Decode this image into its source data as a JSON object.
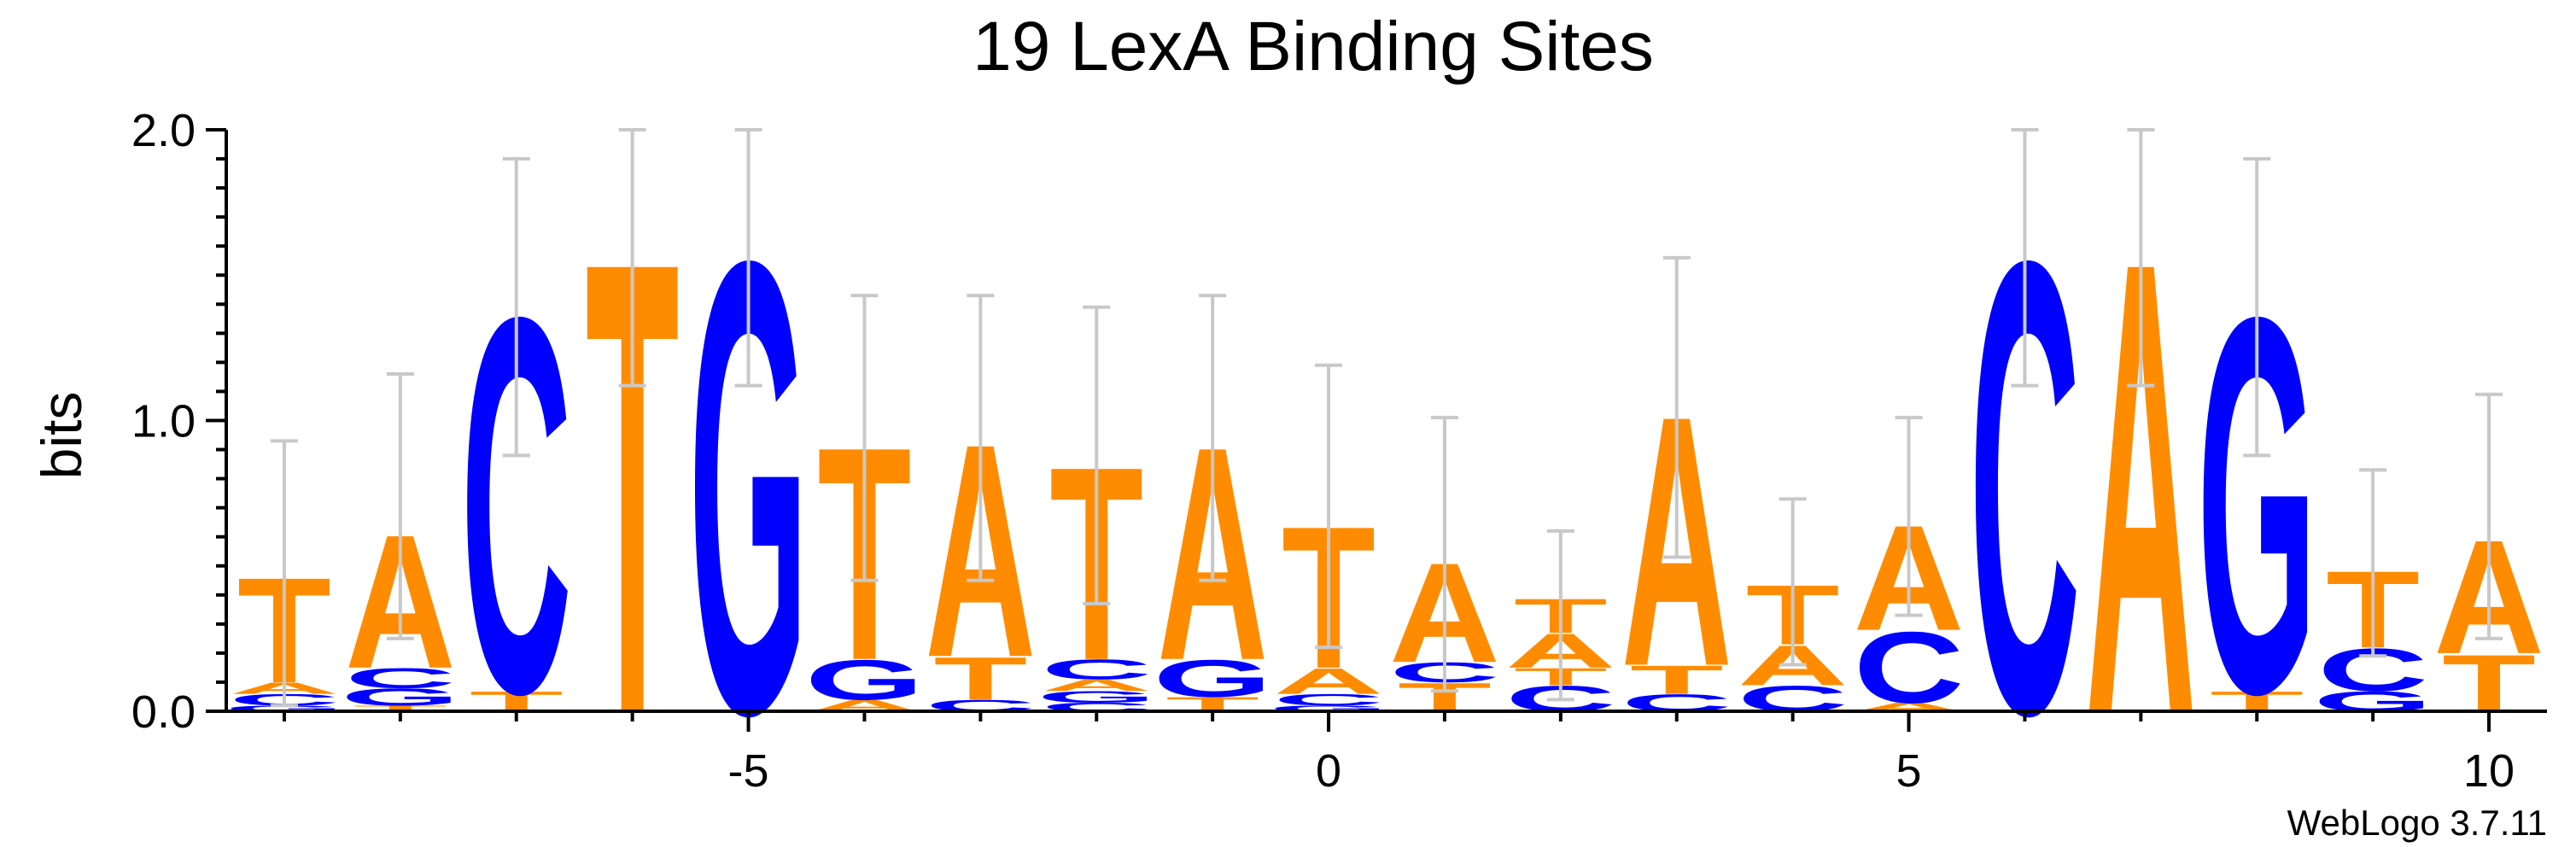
{
  "chart_data": {
    "type": "sequence-logo",
    "title": "19 LexA Binding Sites",
    "ylabel": "bits",
    "xlabel": "",
    "ylim": [
      0,
      2.0
    ],
    "xlim": [
      -9.5,
      10.5
    ],
    "y_ticks": [
      "0.0",
      "1.0",
      "2.0"
    ],
    "x_ticks": [
      "-5",
      "0",
      "5",
      "10"
    ],
    "footer": "WebLogo 3.7.11",
    "colors": {
      "A": "#ff8c00",
      "T": "#ff8c00",
      "C": "#0000ff",
      "G": "#0000ff",
      "error_bar": "#c8c8c8"
    },
    "positions": [
      {
        "pos": -9,
        "error": [
          0.02,
          0.93
        ],
        "stack": [
          {
            "b": "G",
            "h": 0.02
          },
          {
            "b": "C",
            "h": 0.04
          },
          {
            "b": "A",
            "h": 0.04
          },
          {
            "b": "T",
            "h": 0.37
          }
        ]
      },
      {
        "pos": -8,
        "error": [
          0.25,
          1.16
        ],
        "stack": [
          {
            "b": "T",
            "h": 0.02
          },
          {
            "b": "G",
            "h": 0.06
          },
          {
            "b": "C",
            "h": 0.07
          },
          {
            "b": "A",
            "h": 0.47
          }
        ]
      },
      {
        "pos": -7,
        "error": [
          0.88,
          1.9
        ],
        "stack": [
          {
            "b": "T",
            "h": 0.07
          },
          {
            "b": "C",
            "h": 1.32
          }
        ]
      },
      {
        "pos": -6,
        "error": [
          1.12,
          2.0
        ],
        "stack": [
          {
            "b": "T",
            "h": 1.59
          }
        ]
      },
      {
        "pos": -5,
        "error": [
          1.12,
          2.0
        ],
        "stack": [
          {
            "b": "G",
            "h": 1.59
          }
        ]
      },
      {
        "pos": -4,
        "error": [
          0.45,
          1.43
        ],
        "stack": [
          {
            "b": "A",
            "h": 0.04
          },
          {
            "b": "G",
            "h": 0.14
          },
          {
            "b": "T",
            "h": 0.75
          }
        ]
      },
      {
        "pos": -3,
        "error": [
          0.45,
          1.43
        ],
        "stack": [
          {
            "b": "C",
            "h": 0.04
          },
          {
            "b": "T",
            "h": 0.15
          },
          {
            "b": "A",
            "h": 0.75
          }
        ]
      },
      {
        "pos": -2,
        "error": [
          0.37,
          1.39
        ],
        "stack": [
          {
            "b": "C",
            "h": 0.03
          },
          {
            "b": "G",
            "h": 0.04
          },
          {
            "b": "A",
            "h": 0.04
          },
          {
            "b": "C",
            "h": 0.07
          },
          {
            "b": "T",
            "h": 0.68
          }
        ]
      },
      {
        "pos": -1,
        "error": [
          0.45,
          1.43
        ],
        "stack": [
          {
            "b": "T",
            "h": 0.05
          },
          {
            "b": "G",
            "h": 0.13
          },
          {
            "b": "A",
            "h": 0.75
          }
        ]
      },
      {
        "pos": 0,
        "error": [
          0.22,
          1.19
        ],
        "stack": [
          {
            "b": "G",
            "h": 0.02
          },
          {
            "b": "C",
            "h": 0.04
          },
          {
            "b": "A",
            "h": 0.09
          },
          {
            "b": "T",
            "h": 0.5
          }
        ]
      },
      {
        "pos": 1,
        "error": [
          0.07,
          1.01
        ],
        "stack": [
          {
            "b": "T",
            "h": 0.1
          },
          {
            "b": "C",
            "h": 0.07
          },
          {
            "b": "A",
            "h": 0.35
          }
        ]
      },
      {
        "pos": 2,
        "error": [
          0.04,
          0.62
        ],
        "stack": [
          {
            "b": "C",
            "h": 0.09
          },
          {
            "b": "T",
            "h": 0.06
          },
          {
            "b": "A",
            "h": 0.12
          },
          {
            "b": "T",
            "h": 0.12
          }
        ]
      },
      {
        "pos": 3,
        "error": [
          0.53,
          1.56
        ],
        "stack": [
          {
            "b": "C",
            "h": 0.06
          },
          {
            "b": "T",
            "h": 0.1
          },
          {
            "b": "A",
            "h": 0.88
          }
        ]
      },
      {
        "pos": 4,
        "error": [
          0.16,
          0.73
        ],
        "stack": [
          {
            "b": "C",
            "h": 0.09
          },
          {
            "b": "A",
            "h": 0.14
          },
          {
            "b": "T",
            "h": 0.21
          }
        ]
      },
      {
        "pos": 5,
        "error": [
          0.33,
          1.01
        ],
        "stack": [
          {
            "b": "A",
            "h": 0.03
          },
          {
            "b": "C",
            "h": 0.25
          },
          {
            "b": "A",
            "h": 0.37
          }
        ]
      },
      {
        "pos": 6,
        "error": [
          1.12,
          2.0
        ],
        "stack": [
          {
            "b": "C",
            "h": 1.59
          }
        ]
      },
      {
        "pos": 7,
        "error": [
          1.12,
          2.0
        ],
        "stack": [
          {
            "b": "A",
            "h": 1.59
          }
        ]
      },
      {
        "pos": 8,
        "error": [
          0.88,
          1.9
        ],
        "stack": [
          {
            "b": "T",
            "h": 0.07
          },
          {
            "b": "G",
            "h": 1.32
          }
        ]
      },
      {
        "pos": 9,
        "error": [
          0.19,
          0.83
        ],
        "stack": [
          {
            "b": "G",
            "h": 0.07
          },
          {
            "b": "C",
            "h": 0.15
          },
          {
            "b": "T",
            "h": 0.27
          }
        ]
      },
      {
        "pos": 10,
        "error": [
          0.25,
          1.09
        ],
        "stack": [
          {
            "b": "T",
            "h": 0.2
          },
          {
            "b": "A",
            "h": 0.4
          }
        ]
      }
    ]
  }
}
